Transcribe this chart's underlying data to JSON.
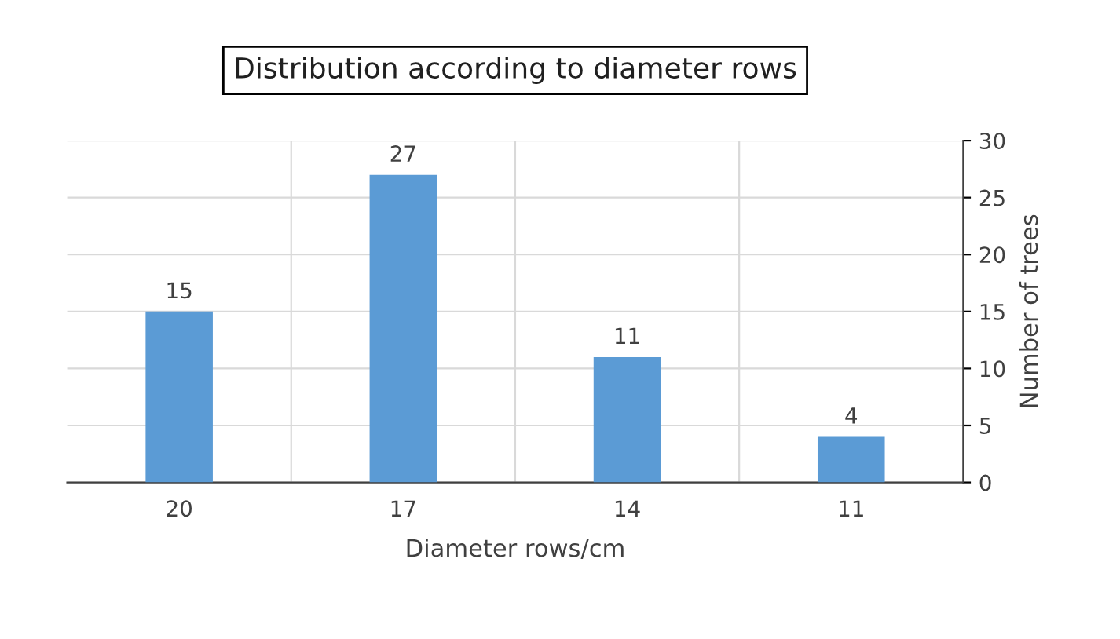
{
  "chart_data": {
    "type": "bar",
    "title": "Distribution according to diameter rows",
    "xlabel": "Diameter rows/cm",
    "ylabel": "Number of trees",
    "categories": [
      "20",
      "17",
      "14",
      "11"
    ],
    "values": [
      15,
      27,
      11,
      4
    ],
    "color": "#5b9bd5",
    "ylim": [
      0,
      30
    ],
    "yticks": [
      0,
      5,
      10,
      15,
      20,
      25,
      30
    ],
    "grid": true,
    "data_labels": true
  }
}
